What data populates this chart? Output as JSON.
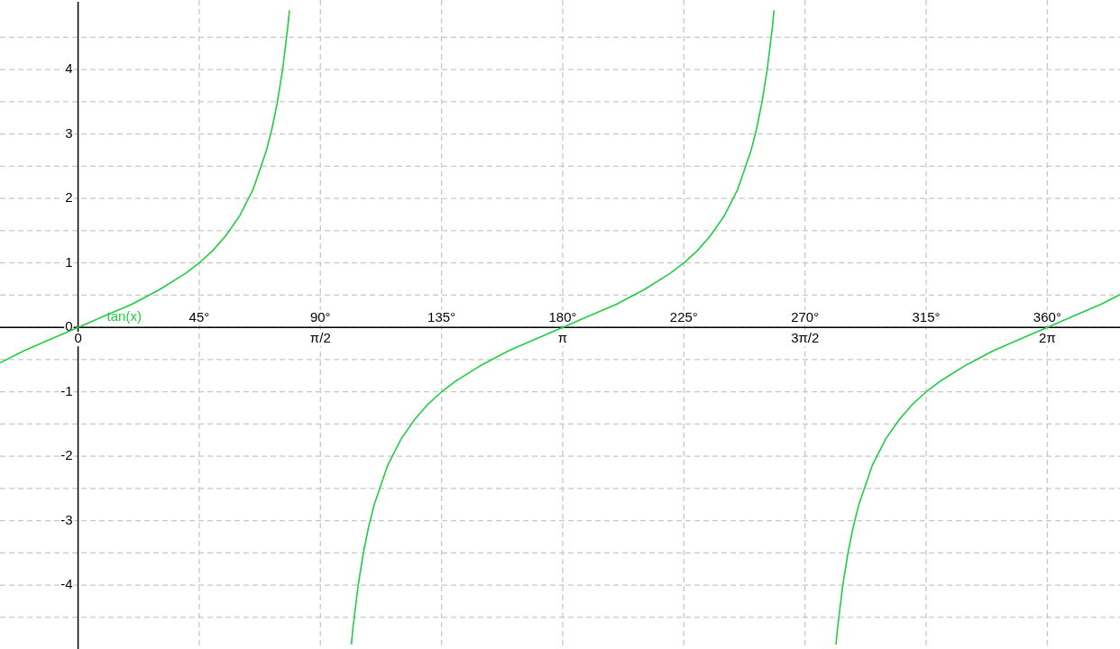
{
  "chart_data": {
    "type": "line",
    "grid": true,
    "legend": false,
    "marker": "none",
    "xlim": [
      -29,
      387
    ],
    "ylim": [
      -4.99,
      5.08
    ],
    "xticks": [
      {
        "value": 45,
        "label": "45°"
      },
      {
        "value": 90,
        "label": "90°"
      },
      {
        "value": 135,
        "label": "135°"
      },
      {
        "value": 180,
        "label": "180°"
      },
      {
        "value": 225,
        "label": "225°"
      },
      {
        "value": 270,
        "label": "270°"
      },
      {
        "value": 315,
        "label": "315°"
      },
      {
        "value": 360,
        "label": "360°"
      }
    ],
    "x2lim": [
      -0.506,
      6.754
    ],
    "x2ticks": [
      {
        "value": 0,
        "label": "0"
      },
      {
        "value": 1.5708,
        "label": "π/2"
      },
      {
        "value": 3.1416,
        "label": "π"
      },
      {
        "value": 4.7124,
        "label": "3π/2"
      },
      {
        "value": 6.2832,
        "label": "2π"
      }
    ],
    "yticks": [
      {
        "value": -4.5,
        "label": null
      },
      -4,
      {
        "value": -3.5,
        "label": null
      },
      -3,
      {
        "value": -2.5,
        "label": null
      },
      -2,
      {
        "value": -1.5,
        "label": null
      },
      -1,
      {
        "value": -0.5,
        "label": null
      },
      0,
      {
        "value": 0.5,
        "label": null
      },
      1,
      {
        "value": 1.5,
        "label": null
      },
      2,
      {
        "value": 2.5,
        "label": null
      },
      3,
      {
        "value": 3.5,
        "label": null
      },
      4,
      {
        "value": 4.5,
        "label": null
      }
    ],
    "series": [
      {
        "name": "tan(x)",
        "color": "#22cc44",
        "x": [
          -29,
          -20,
          -10,
          0,
          10,
          20,
          30,
          40,
          45,
          50,
          55,
          60,
          65,
          70,
          72,
          74,
          76,
          78,
          78.5,
          90,
          101.5,
          102,
          104,
          106,
          108,
          110,
          115,
          120,
          125,
          130,
          135,
          140,
          150,
          160,
          170,
          180,
          190,
          200,
          210,
          220,
          225,
          230,
          235,
          240,
          245,
          250,
          252,
          254,
          256,
          258,
          258.5,
          270,
          281.5,
          282,
          284,
          286,
          288,
          290,
          295,
          300,
          305,
          310,
          315,
          320,
          330,
          340,
          350,
          360,
          370,
          380,
          387
        ],
        "values": [
          -0.55,
          -0.36,
          -0.18,
          0,
          0.18,
          0.36,
          0.58,
          0.84,
          1,
          1.19,
          1.43,
          1.73,
          2.14,
          2.75,
          3.08,
          3.49,
          4.01,
          4.7,
          4.92,
          null,
          -4.92,
          -4.7,
          -4.01,
          -3.49,
          -3.08,
          -2.75,
          -2.14,
          -1.73,
          -1.43,
          -1.19,
          -1,
          -0.84,
          -0.58,
          -0.36,
          -0.18,
          0,
          0.18,
          0.36,
          0.58,
          0.84,
          1,
          1.19,
          1.43,
          1.73,
          2.14,
          2.75,
          3.08,
          3.49,
          4.01,
          4.7,
          4.92,
          null,
          -4.92,
          -4.7,
          -4.01,
          -3.49,
          -3.08,
          -2.75,
          -2.14,
          -1.73,
          -1.43,
          -1.19,
          -1,
          -0.84,
          -0.58,
          -0.36,
          -0.18,
          0,
          0.18,
          0.36,
          0.51
        ]
      }
    ]
  }
}
